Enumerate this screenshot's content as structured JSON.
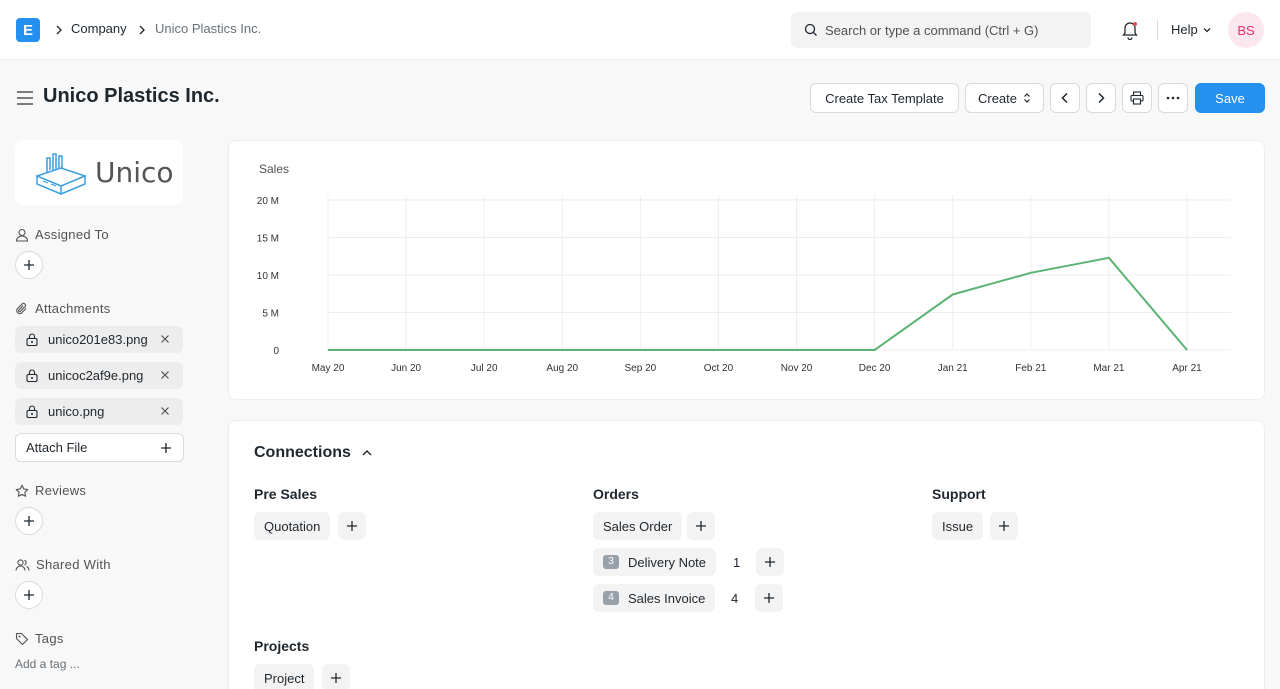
{
  "navbar": {
    "logo_letter": "E",
    "breadcrumbs": [
      "Company",
      "Unico Plastics Inc."
    ],
    "search_placeholder": "Search or type a command (Ctrl + G)",
    "help_label": "Help",
    "avatar_initials": "BS"
  },
  "page": {
    "title": "Unico Plastics Inc.",
    "actions": {
      "tax_template": "Create Tax Template",
      "create": "Create",
      "save": "Save"
    }
  },
  "sidebar": {
    "logo_text": "Unico",
    "assigned_to": "Assigned To",
    "attachments_label": "Attachments",
    "attachments": [
      "unico201e83.png",
      "unicoc2af9e.png",
      "unico.png"
    ],
    "attach_file": "Attach File",
    "reviews": "Reviews",
    "shared_with": "Shared With",
    "tags": "Tags",
    "add_tag": "Add a tag ..."
  },
  "chart_data": {
    "type": "line",
    "title": "Sales",
    "categories": [
      "May 20",
      "Jun 20",
      "Jul 20",
      "Aug 20",
      "Sep 20",
      "Oct 20",
      "Nov 20",
      "Dec 20",
      "Jan 21",
      "Feb 21",
      "Mar 21",
      "Apr 21"
    ],
    "series": [
      {
        "values": [
          0,
          0,
          0,
          0,
          0,
          0,
          0,
          0,
          7400000,
          10300000,
          12300000,
          0
        ]
      }
    ],
    "y_ticks": [
      "0",
      "5 M",
      "10 M",
      "15 M",
      "20 M"
    ],
    "ylim": [
      0,
      20000000
    ],
    "grid": true,
    "color": "#5bb374"
  },
  "connections": {
    "title": "Connections",
    "groups": {
      "pre_sales": {
        "title": "Pre Sales",
        "items": [
          {
            "label": "Quotation"
          }
        ]
      },
      "orders": {
        "title": "Orders",
        "items": [
          {
            "label": "Sales Order"
          },
          {
            "label": "Delivery Note",
            "badge": "3",
            "count": "1"
          },
          {
            "label": "Sales Invoice",
            "badge": "4",
            "count": "4"
          }
        ]
      },
      "support": {
        "title": "Support",
        "items": [
          {
            "label": "Issue"
          }
        ]
      },
      "projects": {
        "title": "Projects",
        "items": [
          {
            "label": "Project"
          }
        ]
      }
    }
  }
}
